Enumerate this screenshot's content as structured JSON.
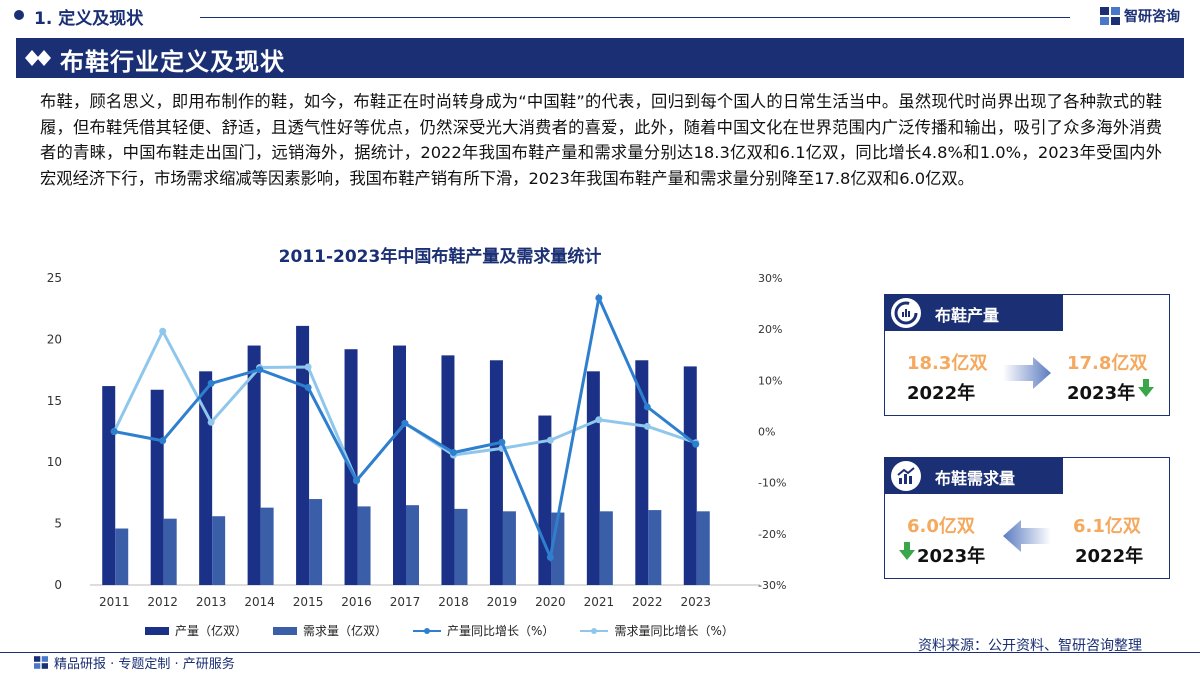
{
  "header": {
    "section_title": "1. 定义及现状",
    "brand": "智研咨询"
  },
  "banner": {
    "title": "布鞋行业定义及现状"
  },
  "paragraph": "布鞋，顾名思义，即用布制作的鞋，如今，布鞋正在时尚转身成为“中国鞋”的代表，回归到每个国人的日常生活当中。虽然现代时尚界出现了各种款式的鞋履，但布鞋凭借其轻便、舒适，且透气性好等优点，仍然深受光大消费者的喜爱，此外，随着中国文化在世界范围内广泛传播和输出，吸引了众多海外消费者的青睐，中国布鞋走出国门，远销海外，据统计，2022年我国布鞋产量和需求量分别达18.3亿双和6.1亿双，同比增长4.8%和1.0%，2023年受国内外宏观经济下行，市场需求缩减等因素影响，我国布鞋产销有所下滑，2023年我国布鞋产量和需求量分别降至17.8亿双和6.0亿双。",
  "chart_data": {
    "type": "bar",
    "title": "2011-2023年中国布鞋产量及需求量统计",
    "categories": [
      "2011",
      "2012",
      "2013",
      "2014",
      "2015",
      "2016",
      "2017",
      "2018",
      "2019",
      "2020",
      "2021",
      "2022",
      "2023"
    ],
    "ylim": [
      0,
      25
    ],
    "y_ticks": [
      "0",
      "5",
      "10",
      "15",
      "20",
      "25"
    ],
    "y2lim": [
      -30,
      30
    ],
    "y2_ticks": [
      "-30%",
      "-20%",
      "-10%",
      "0%",
      "10%",
      "20%",
      "30%"
    ],
    "grid": false,
    "legend_position": "bottom",
    "series": [
      {
        "name": "产量（亿双）",
        "type": "bar",
        "axis": "left",
        "color": "#1a3187",
        "values": [
          16.2,
          15.9,
          17.4,
          19.5,
          21.1,
          19.2,
          19.5,
          18.7,
          18.3,
          13.8,
          17.4,
          18.3,
          17.8
        ]
      },
      {
        "name": "需求量（亿双）",
        "type": "bar",
        "axis": "left",
        "color": "#3a5ea8",
        "values": [
          4.6,
          5.4,
          5.6,
          6.3,
          7.0,
          6.4,
          6.5,
          6.2,
          6.0,
          5.9,
          6.0,
          6.1,
          6.0
        ]
      },
      {
        "name": "产量同比增长（%）",
        "type": "line",
        "axis": "right",
        "color": "#2f7fcf",
        "values": [
          0.0,
          -1.8,
          9.4,
          12.1,
          8.6,
          -9.6,
          1.6,
          -4.1,
          -2.1,
          -24.6,
          26.1,
          4.8,
          -2.5
        ]
      },
      {
        "name": "需求量同比增长（%）",
        "type": "line",
        "axis": "right",
        "color": "#8fc7ec",
        "values": [
          0.0,
          19.6,
          1.8,
          12.5,
          12.6,
          -9.6,
          1.6,
          -4.6,
          -3.3,
          -1.7,
          2.3,
          1.0,
          -2.2
        ]
      }
    ]
  },
  "cards": {
    "production": {
      "title": "布鞋产量",
      "from_value": "18.3亿双",
      "from_year": "2022年",
      "to_value": "17.8亿双",
      "to_year": "2023年",
      "icon": "production-gauge-icon"
    },
    "demand": {
      "title": "布鞋需求量",
      "from_value": "6.0亿双",
      "from_year": "2023年",
      "to_value": "6.1亿双",
      "to_year": "2022年",
      "icon": "demand-chart-icon"
    }
  },
  "colors": {
    "navy": "#1a2f74",
    "orange": "#f4a95e",
    "green_down": "#3aa64a"
  },
  "source": "资料来源：公开资料、智研咨询整理",
  "footer": "精品研报 · 专题定制 · 产研服务"
}
